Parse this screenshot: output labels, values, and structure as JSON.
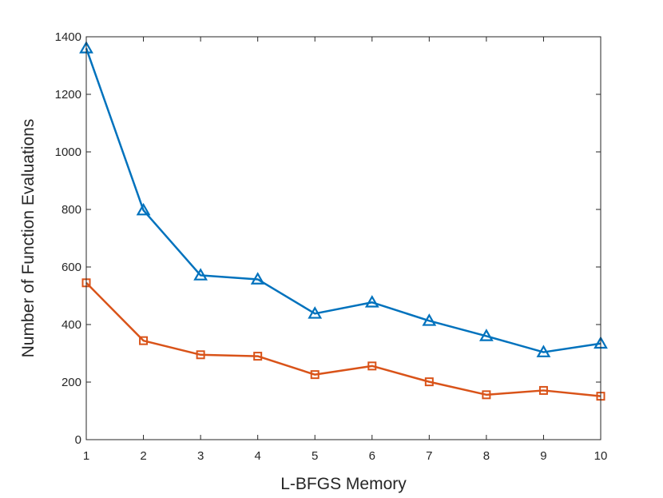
{
  "chart_data": {
    "type": "line",
    "xlabel": "L-BFGS Memory",
    "ylabel": "Number of Function Evaluations",
    "xlim": [
      1,
      10
    ],
    "ylim": [
      0,
      1400
    ],
    "xticks": [
      "1",
      "2",
      "3",
      "4",
      "5",
      "6",
      "7",
      "8",
      "9",
      "10"
    ],
    "yticks": [
      "0",
      "200",
      "400",
      "600",
      "800",
      "1000",
      "1200",
      "1400"
    ],
    "grid": false,
    "legend": "none",
    "x": [
      1,
      2,
      3,
      4,
      5,
      6,
      7,
      8,
      9,
      10
    ],
    "series": [
      {
        "marker": "triangle",
        "color": "#0072BD",
        "values": [
          1360,
          797,
          571,
          557,
          438,
          477,
          413,
          360,
          304,
          334
        ]
      },
      {
        "marker": "square",
        "color": "#D95319",
        "values": [
          545,
          344,
          295,
          290,
          226,
          256,
          201,
          156,
          171,
          151
        ]
      }
    ]
  }
}
